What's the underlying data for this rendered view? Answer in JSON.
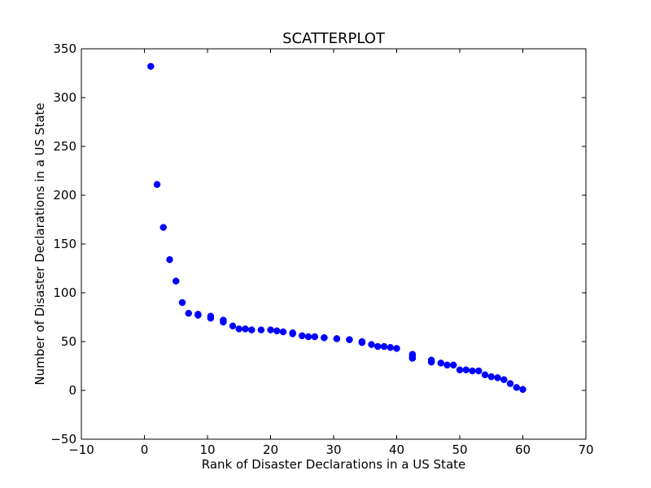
{
  "chart_data": {
    "type": "scatter",
    "title": "SCATTERPLOT",
    "xlabel": "Rank of Disaster Declarations in a US State",
    "ylabel": "Number of Disaster Declarations in a US State",
    "xlim": [
      -10,
      70
    ],
    "ylim": [
      -50,
      350
    ],
    "xticks": [
      "−10",
      "0",
      "10",
      "20",
      "30",
      "40",
      "50",
      "60",
      "70"
    ],
    "yticks": [
      "−50",
      "0",
      "50",
      "100",
      "150",
      "200",
      "250",
      "300",
      "350"
    ],
    "grid": false,
    "marker_color": "#0000ff",
    "points": [
      [
        1,
        332
      ],
      [
        2,
        211
      ],
      [
        3,
        167
      ],
      [
        4,
        134
      ],
      [
        5,
        112
      ],
      [
        6,
        90
      ],
      [
        7,
        79
      ],
      [
        8.5,
        78
      ],
      [
        8.5,
        77
      ],
      [
        10.5,
        76
      ],
      [
        10.5,
        74
      ],
      [
        12.5,
        72
      ],
      [
        12.5,
        70
      ],
      [
        14,
        66
      ],
      [
        15,
        63
      ],
      [
        16,
        63
      ],
      [
        17,
        62
      ],
      [
        18.5,
        62
      ],
      [
        20,
        62
      ],
      [
        21,
        61
      ],
      [
        22,
        60
      ],
      [
        23.5,
        59
      ],
      [
        23.5,
        58
      ],
      [
        25,
        56
      ],
      [
        26,
        55
      ],
      [
        27,
        55
      ],
      [
        28.5,
        54
      ],
      [
        28.5,
        54
      ],
      [
        30.5,
        53
      ],
      [
        30.5,
        53
      ],
      [
        32.5,
        52
      ],
      [
        32.5,
        52
      ],
      [
        34.5,
        50
      ],
      [
        34.5,
        49
      ],
      [
        36,
        47
      ],
      [
        37,
        45
      ],
      [
        38,
        45
      ],
      [
        39,
        44
      ],
      [
        40,
        43
      ],
      [
        42.5,
        37
      ],
      [
        42.5,
        35
      ],
      [
        42.5,
        33
      ],
      [
        42.5,
        33
      ],
      [
        45.5,
        31
      ],
      [
        45.5,
        29
      ],
      [
        47,
        28
      ],
      [
        48,
        26
      ],
      [
        49,
        26
      ],
      [
        50,
        21
      ],
      [
        51,
        21
      ],
      [
        52,
        20
      ],
      [
        53,
        20
      ],
      [
        54,
        16
      ],
      [
        55,
        14
      ],
      [
        56,
        13
      ],
      [
        57,
        11
      ],
      [
        58,
        7
      ],
      [
        59,
        3
      ],
      [
        60,
        1
      ]
    ]
  }
}
